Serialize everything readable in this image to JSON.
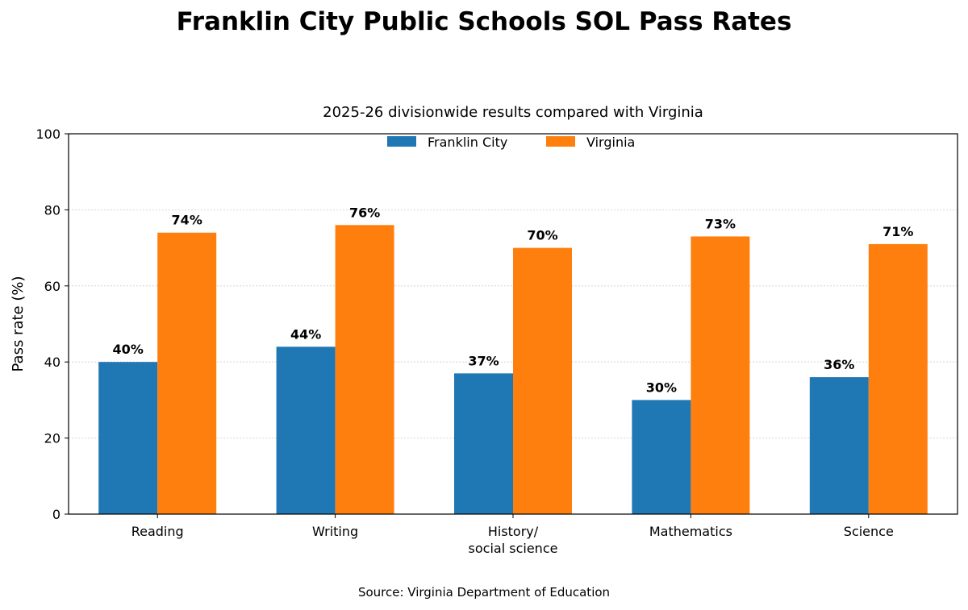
{
  "chart_data": {
    "type": "bar",
    "title": "Franklin City Public Schools SOL Pass Rates",
    "subtitle": "2025-26 divisionwide results compared with Virginia",
    "ylabel": "Pass rate (%)",
    "xlabel": "",
    "source": "Source: Virginia Department of Education",
    "ylim": [
      0,
      100
    ],
    "yticks": [
      0,
      20,
      40,
      60,
      80,
      100
    ],
    "grid": "horizontal",
    "legend_position": "top-center",
    "categories": [
      [
        "Reading"
      ],
      [
        "Writing"
      ],
      [
        "History/",
        "social science"
      ],
      [
        "Mathematics"
      ],
      [
        "Science"
      ]
    ],
    "series": [
      {
        "name": "Franklin City",
        "color": "#1f77b4",
        "values": [
          40,
          44,
          37,
          30,
          36
        ]
      },
      {
        "name": "Virginia",
        "color": "#ff7f0e",
        "values": [
          74,
          76,
          70,
          73,
          71
        ]
      }
    ],
    "value_suffix": "%"
  }
}
